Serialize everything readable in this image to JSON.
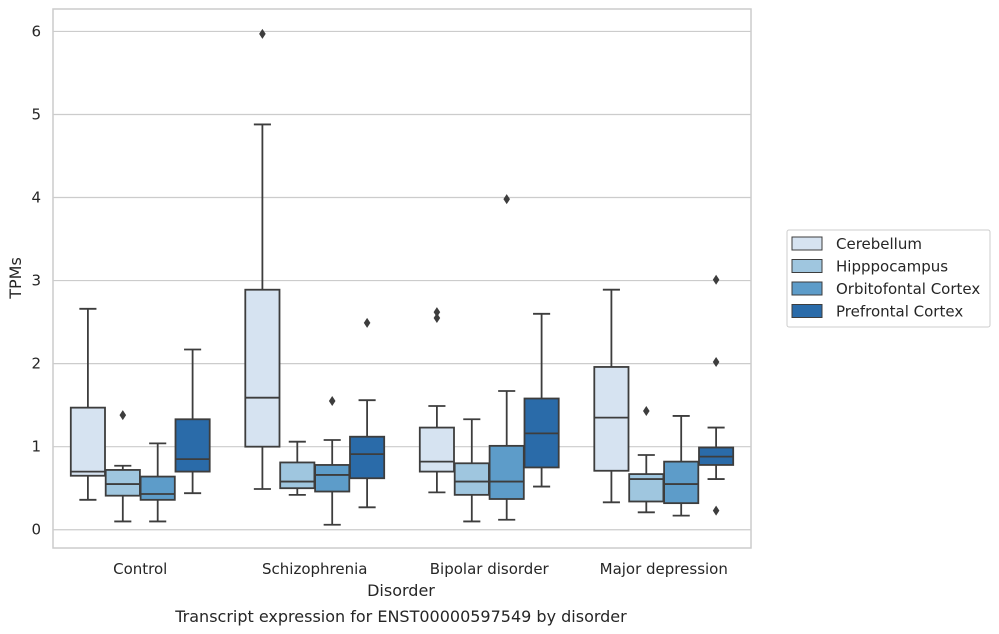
{
  "chart_data": {
    "type": "box",
    "title": "Transcript expression for ENST00000597549 by disorder",
    "xlabel": "Disorder",
    "ylabel": "TPMs",
    "ylim": [
      -0.22,
      6.27
    ],
    "yticks": [
      0,
      1,
      2,
      3,
      4,
      5,
      6
    ],
    "grid": "horizontal",
    "legend_placement": "right",
    "categories": [
      "Control",
      "Schizophrenia",
      "Bipolar disorder",
      "Major depression"
    ],
    "series": [
      {
        "name": "Cerebellum",
        "color": "#d6e3f1",
        "boxes": [
          {
            "whisker_low": 0.36,
            "q1": 0.65,
            "median": 0.7,
            "q3": 1.47,
            "whisker_high": 2.66,
            "outliers": []
          },
          {
            "whisker_low": 0.49,
            "q1": 1.0,
            "median": 1.59,
            "q3": 2.89,
            "whisker_high": 4.88,
            "outliers": [
              5.97
            ]
          },
          {
            "whisker_low": 0.45,
            "q1": 0.7,
            "median": 0.82,
            "q3": 1.23,
            "whisker_high": 1.49,
            "outliers": [
              2.55,
              2.62
            ]
          },
          {
            "whisker_low": 0.33,
            "q1": 0.71,
            "median": 1.35,
            "q3": 1.96,
            "whisker_high": 2.89,
            "outliers": []
          }
        ]
      },
      {
        "name": "Hipppocampus",
        "color": "#9fc6df",
        "boxes": [
          {
            "whisker_low": 0.1,
            "q1": 0.41,
            "median": 0.55,
            "q3": 0.72,
            "whisker_high": 0.77,
            "outliers": [
              1.38
            ]
          },
          {
            "whisker_low": 0.42,
            "q1": 0.5,
            "median": 0.58,
            "q3": 0.81,
            "whisker_high": 1.06,
            "outliers": []
          },
          {
            "whisker_low": 0.1,
            "q1": 0.42,
            "median": 0.58,
            "q3": 0.8,
            "whisker_high": 1.33,
            "outliers": []
          },
          {
            "whisker_low": 0.21,
            "q1": 0.34,
            "median": 0.61,
            "q3": 0.67,
            "whisker_high": 0.9,
            "outliers": [
              1.43
            ]
          }
        ]
      },
      {
        "name": "Orbitofontal Cortex",
        "color": "#5d9cc9",
        "boxes": [
          {
            "whisker_low": 0.1,
            "q1": 0.36,
            "median": 0.43,
            "q3": 0.64,
            "whisker_high": 1.04,
            "outliers": []
          },
          {
            "whisker_low": 0.06,
            "q1": 0.46,
            "median": 0.66,
            "q3": 0.78,
            "whisker_high": 1.08,
            "outliers": [
              1.55
            ]
          },
          {
            "whisker_low": 0.12,
            "q1": 0.37,
            "median": 0.58,
            "q3": 1.01,
            "whisker_high": 1.67,
            "outliers": [
              3.98
            ]
          },
          {
            "whisker_low": 0.17,
            "q1": 0.32,
            "median": 0.55,
            "q3": 0.82,
            "whisker_high": 1.37,
            "outliers": []
          }
        ]
      },
      {
        "name": "Prefrontal Cortex",
        "color": "#2a6ba9",
        "boxes": [
          {
            "whisker_low": 0.44,
            "q1": 0.7,
            "median": 0.85,
            "q3": 1.33,
            "whisker_high": 2.17,
            "outliers": []
          },
          {
            "whisker_low": 0.27,
            "q1": 0.62,
            "median": 0.91,
            "q3": 1.12,
            "whisker_high": 1.56,
            "outliers": [
              2.49
            ]
          },
          {
            "whisker_low": 0.52,
            "q1": 0.75,
            "median": 1.16,
            "q3": 1.58,
            "whisker_high": 2.6,
            "outliers": []
          },
          {
            "whisker_low": 0.61,
            "q1": 0.78,
            "median": 0.88,
            "q3": 0.99,
            "whisker_high": 1.23,
            "outliers": [
              3.01,
              2.02,
              0.23
            ]
          }
        ]
      }
    ]
  }
}
